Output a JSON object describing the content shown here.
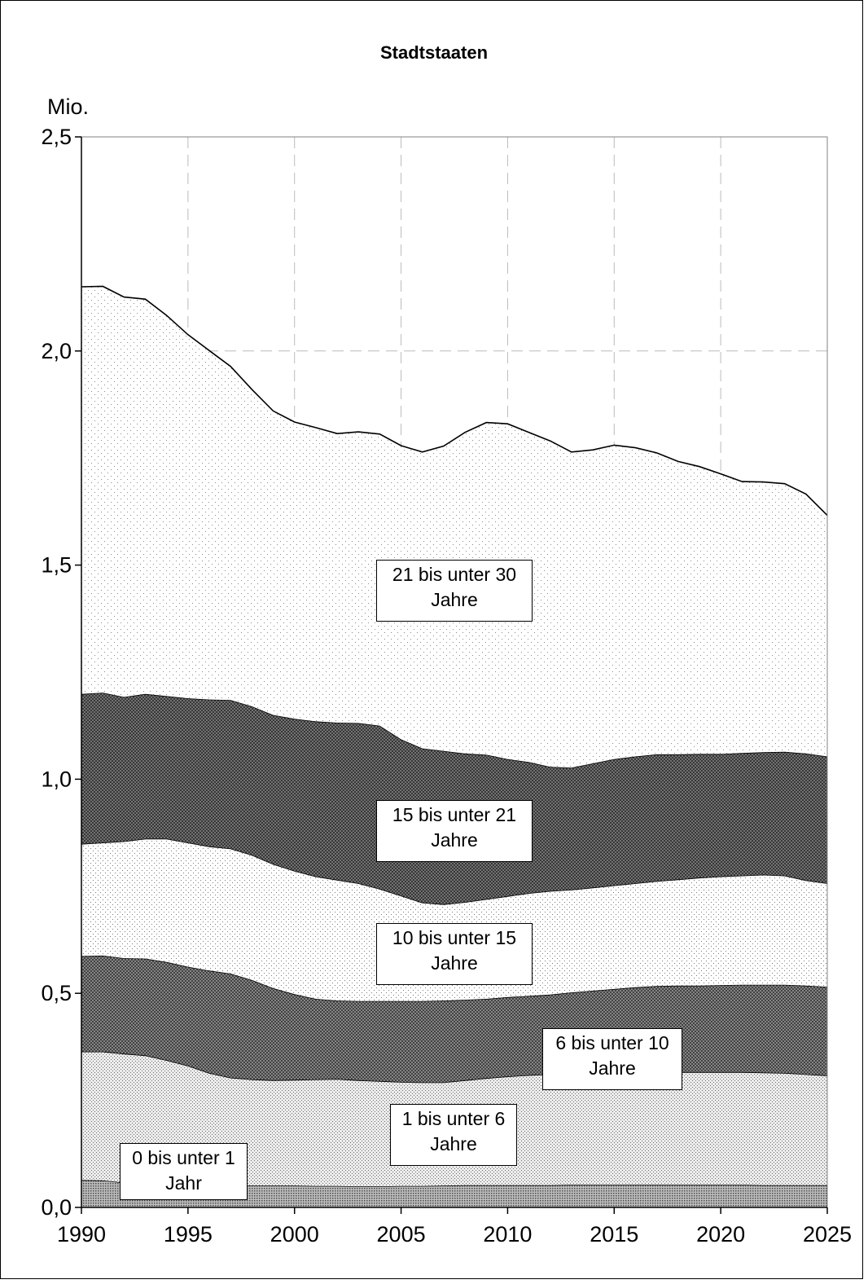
{
  "chart_data": {
    "type": "area",
    "title": "Stadtstaaten",
    "ylabel": "Mio.",
    "xlabel": "",
    "stacked": true,
    "xlim": [
      1990,
      2025
    ],
    "ylim": [
      0,
      2.5
    ],
    "grid": true,
    "x_ticks": [
      "1990",
      "1995",
      "2000",
      "2005",
      "2010",
      "2015",
      "2020",
      "2025"
    ],
    "y_ticks": [
      "0,0",
      "0,5",
      "1,0",
      "1,5",
      "2,0",
      "2,5"
    ],
    "x": [
      1990,
      1991,
      1992,
      1993,
      1994,
      1995,
      1996,
      1997,
      1998,
      1999,
      2000,
      2001,
      2002,
      2003,
      2004,
      2005,
      2006,
      2007,
      2008,
      2009,
      2010,
      2011,
      2012,
      2013,
      2014,
      2015,
      2016,
      2017,
      2018,
      2019,
      2020,
      2021,
      2022,
      2023,
      2024,
      2025
    ],
    "series": [
      {
        "name": "0 bis unter 1 Jahr",
        "values": [
          0.064,
          0.063,
          0.058,
          0.056,
          0.054,
          0.053,
          0.052,
          0.052,
          0.051,
          0.051,
          0.051,
          0.05,
          0.05,
          0.049,
          0.049,
          0.05,
          0.05,
          0.051,
          0.052,
          0.052,
          0.052,
          0.052,
          0.052,
          0.053,
          0.053,
          0.053,
          0.053,
          0.053,
          0.053,
          0.053,
          0.053,
          0.053,
          0.052,
          0.052,
          0.052,
          0.052
        ]
      },
      {
        "name": "1 bis unter 6 Jahre",
        "values": [
          0.3,
          0.301,
          0.301,
          0.299,
          0.29,
          0.278,
          0.262,
          0.251,
          0.248,
          0.246,
          0.247,
          0.249,
          0.25,
          0.248,
          0.246,
          0.243,
          0.242,
          0.241,
          0.245,
          0.25,
          0.254,
          0.257,
          0.259,
          0.261,
          0.261,
          0.261,
          0.262,
          0.263,
          0.263,
          0.263,
          0.263,
          0.263,
          0.263,
          0.262,
          0.259,
          0.256
        ]
      },
      {
        "name": "6 bis unter 10 Jahre",
        "values": [
          0.223,
          0.224,
          0.223,
          0.226,
          0.229,
          0.231,
          0.239,
          0.243,
          0.232,
          0.215,
          0.2,
          0.188,
          0.183,
          0.185,
          0.187,
          0.189,
          0.19,
          0.191,
          0.188,
          0.185,
          0.185,
          0.185,
          0.186,
          0.188,
          0.192,
          0.196,
          0.199,
          0.201,
          0.202,
          0.202,
          0.203,
          0.204,
          0.205,
          0.206,
          0.207,
          0.207
        ]
      },
      {
        "name": "10 bis unter 15 Jahre",
        "values": [
          0.262,
          0.264,
          0.273,
          0.28,
          0.288,
          0.29,
          0.29,
          0.292,
          0.292,
          0.29,
          0.288,
          0.286,
          0.282,
          0.275,
          0.262,
          0.246,
          0.23,
          0.225,
          0.228,
          0.233,
          0.236,
          0.24,
          0.242,
          0.24,
          0.241,
          0.242,
          0.243,
          0.245,
          0.248,
          0.252,
          0.254,
          0.255,
          0.257,
          0.255,
          0.246,
          0.242
        ]
      },
      {
        "name": "15 bis unter 21 Jahre",
        "values": [
          0.35,
          0.35,
          0.337,
          0.338,
          0.333,
          0.337,
          0.343,
          0.347,
          0.347,
          0.348,
          0.355,
          0.362,
          0.367,
          0.374,
          0.381,
          0.365,
          0.36,
          0.358,
          0.347,
          0.337,
          0.32,
          0.306,
          0.29,
          0.285,
          0.29,
          0.295,
          0.296,
          0.296,
          0.292,
          0.289,
          0.286,
          0.286,
          0.286,
          0.289,
          0.296,
          0.296
        ]
      },
      {
        "name": "21 bis unter 30 Jahre",
        "values": [
          0.951,
          0.949,
          0.934,
          0.922,
          0.889,
          0.849,
          0.815,
          0.779,
          0.74,
          0.71,
          0.693,
          0.686,
          0.675,
          0.68,
          0.681,
          0.686,
          0.692,
          0.712,
          0.75,
          0.776,
          0.783,
          0.77,
          0.761,
          0.737,
          0.732,
          0.733,
          0.721,
          0.704,
          0.684,
          0.671,
          0.654,
          0.634,
          0.631,
          0.626,
          0.606,
          0.563
        ]
      }
    ]
  }
}
